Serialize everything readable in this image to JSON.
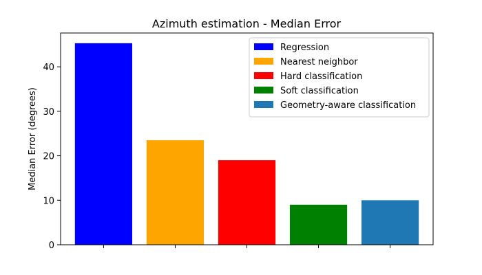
{
  "chart_data": {
    "type": "bar",
    "title": "Azimuth estimation - Median Error",
    "xlabel": "",
    "ylabel": "Median Error (degrees)",
    "ylim": [
      0,
      47.6
    ],
    "yticks": [
      0,
      10,
      20,
      30,
      40
    ],
    "legend_position": "upper right",
    "series": [
      {
        "name": "Regression",
        "value": 45.3,
        "color": "#0000ff"
      },
      {
        "name": "Nearest neighbor",
        "value": 23.5,
        "color": "#ffa500"
      },
      {
        "name": "Hard classification",
        "value": 19.0,
        "color": "#ff0000"
      },
      {
        "name": "Soft classification",
        "value": 9.0,
        "color": "#008000"
      },
      {
        "name": "Geometry-aware classification",
        "value": 10.0,
        "color": "#1f77b4"
      }
    ]
  }
}
